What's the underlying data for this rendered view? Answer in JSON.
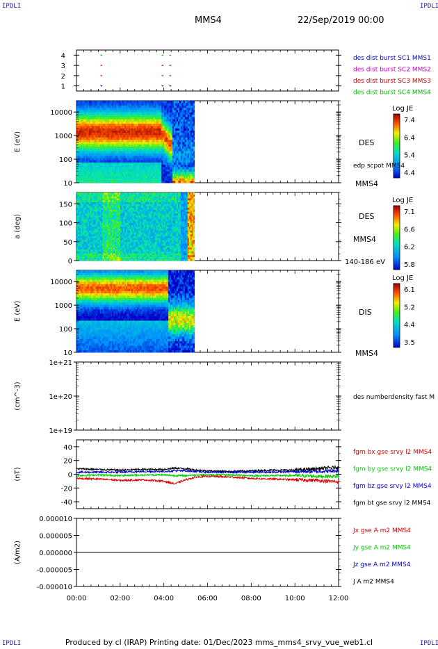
{
  "header": {
    "left_tag": "IPDLI",
    "right_tag": "IPDLI",
    "title": "MMS4",
    "datetime": "22/Sep/2019 00:00"
  },
  "footer": {
    "text": "Produced by cl (IRAP)   Printing date: 01/Dec/2023   mms_mms4_srvy_vue_web1.cl",
    "left_tag": "IPDLI",
    "right_tag": "IPDLI"
  },
  "chart_data": [
    {
      "type": "line",
      "name": "burst-availability",
      "y_ticks": [
        "1",
        "2",
        "3",
        "4"
      ],
      "ylim": [
        0.5,
        4.5
      ],
      "legend": [
        {
          "label": "des dist burst SC1 MMS1",
          "color": "#0000cc"
        },
        {
          "label": "des dist burst SC2 MMS2",
          "color": "#cc00cc"
        },
        {
          "label": "des dist burst SC3 MMS3",
          "color": "#cc0000"
        },
        {
          "label": "des dist burst SC4 MMS4",
          "color": "#00bb00"
        }
      ],
      "marks": [
        {
          "level": 4,
          "hours": [
            1.1,
            3.9,
            4.25
          ],
          "color": "#00bb00"
        },
        {
          "level": 3,
          "hours": [
            1.1,
            3.9,
            4.25
          ],
          "color": "#cc0000"
        },
        {
          "level": 2,
          "hours": [
            1.1,
            3.9,
            4.25
          ],
          "color": "#cc00cc"
        },
        {
          "level": 1,
          "hours": [
            1.1,
            3.9,
            4.25
          ],
          "color": "#0000cc"
        }
      ]
    },
    {
      "type": "heatmap",
      "name": "des-energy-spectrogram",
      "ylabel": "E (eV)",
      "y_scale": "log",
      "ylim": [
        10,
        30000
      ],
      "y_ticks": [
        "10",
        "100",
        "1000",
        "10000"
      ],
      "data_end_hour": 5.4,
      "right_label": "DES",
      "right_sub_label": "edp scpot MMS4",
      "right_bottom_label": "MMS4",
      "colorbar": {
        "title": "Log JE",
        "ticks": [
          "7.4",
          "6.4",
          "5.4",
          "4.4"
        ],
        "range": [
          4.4,
          7.4
        ]
      }
    },
    {
      "type": "heatmap",
      "name": "des-pitch-angle",
      "ylabel": "a (deg)",
      "ylim": [
        0,
        180
      ],
      "y_ticks": [
        "0",
        "50",
        "100",
        "150"
      ],
      "data_end_hour": 5.4,
      "right_label": "DES",
      "right_sub_label": "MMS4",
      "right_bottom_label": "140-186 eV",
      "colorbar": {
        "title": "Log JE",
        "ticks": [
          "7.1",
          "6.6",
          "6.2",
          "5.8"
        ],
        "range": [
          5.8,
          7.1
        ]
      }
    },
    {
      "type": "heatmap",
      "name": "dis-energy-spectrogram",
      "ylabel": "E (eV)",
      "y_scale": "log",
      "ylim": [
        10,
        30000
      ],
      "y_ticks": [
        "10",
        "100",
        "1000",
        "10000"
      ],
      "data_end_hour": 5.4,
      "right_label": "DIS",
      "right_bottom_label": "MMS4",
      "colorbar": {
        "title": "Log JE",
        "ticks": [
          "6.1",
          "5.2",
          "4.4",
          "3.5"
        ],
        "range": [
          3.5,
          6.1
        ]
      }
    },
    {
      "type": "line",
      "name": "density",
      "ylabel": "(cm^-3)",
      "y_scale": "log",
      "y_ticks": [
        "1e+19",
        "1e+20",
        "1e+21"
      ],
      "ylim": [
        1e+19,
        1e+21
      ],
      "legend": [
        {
          "label": "des numberdensity fast M",
          "color": "#000000"
        }
      ]
    },
    {
      "type": "line",
      "name": "magnetic-field",
      "ylabel": "(nT)",
      "ylim": [
        -50,
        50
      ],
      "y_ticks": [
        "-40",
        "-20",
        "0",
        "20",
        "40"
      ],
      "legend": [
        {
          "label": "fgm bx gse srvy l2 MMS4",
          "color": "#dd0000"
        },
        {
          "label": "fgm by gse srvy l2 MMS4",
          "color": "#00cc00"
        },
        {
          "label": "fgm bz gse srvy l2 MMS4",
          "color": "#0000cc"
        },
        {
          "label": "fgm bt gse srvy l2 MMS4",
          "color": "#000000"
        }
      ],
      "series": [
        {
          "name": "fgm bt gse srvy l2 MMS4",
          "color": "#000000",
          "x": [
            0,
            1,
            2,
            3,
            4,
            4.5,
            5,
            5.5,
            6,
            7,
            8,
            9,
            10,
            11,
            12
          ],
          "values": [
            8,
            7,
            6,
            7,
            7,
            9,
            8,
            6,
            5,
            4,
            5,
            6,
            6,
            8,
            10
          ]
        },
        {
          "name": "fgm bz gse srvy l2 MMS4",
          "color": "#0000cc",
          "x": [
            0,
            1,
            2,
            3,
            4,
            4.5,
            5,
            5.5,
            6,
            7,
            8,
            9,
            10,
            11,
            12
          ],
          "values": [
            3,
            3,
            3,
            4,
            4,
            5,
            5,
            4,
            3,
            3,
            3,
            3,
            4,
            4,
            5
          ]
        },
        {
          "name": "fgm by gse srvy l2 MMS4",
          "color": "#00cc00",
          "x": [
            0,
            1,
            2,
            3,
            4,
            4.5,
            5,
            5.5,
            6,
            7,
            8,
            9,
            10,
            11,
            12
          ],
          "values": [
            -2,
            -1,
            -2,
            -1,
            -1,
            -2,
            -2,
            -1,
            -1,
            -1,
            -2,
            -2,
            -2,
            -3,
            -3
          ]
        },
        {
          "name": "fgm bx gse srvy l2 MMS4",
          "color": "#dd0000",
          "x": [
            0,
            1,
            2,
            3,
            4,
            4.5,
            5,
            5.5,
            6,
            7,
            8,
            9,
            10,
            11,
            12
          ],
          "values": [
            -6,
            -7,
            -9,
            -8,
            -10,
            -14,
            -8,
            -4,
            -3,
            -4,
            -6,
            -7,
            -8,
            -9,
            -11
          ]
        }
      ]
    },
    {
      "type": "line",
      "name": "current-density",
      "ylabel": "(A/m2)",
      "ylim": [
        -1e-05,
        1e-05
      ],
      "y_ticks": [
        "-0.000010",
        "-0.000005",
        "0.000000",
        "0.000005",
        "0.000010"
      ],
      "legend": [
        {
          "label": "Jx gse A m2 MMS4",
          "color": "#dd0000"
        },
        {
          "label": "Jy gse A m2 MMS4",
          "color": "#00cc00"
        },
        {
          "label": "Jz gse A m2 MMS4",
          "color": "#0000cc"
        },
        {
          "label": "J A m2 MMS4",
          "color": "#000000"
        }
      ],
      "series": [
        {
          "name": "J A m2 MMS4",
          "color": "#000000",
          "x": [
            0,
            12
          ],
          "values": [
            0,
            0
          ]
        }
      ]
    }
  ],
  "time_axis": {
    "range_hours": [
      0,
      12
    ],
    "ticks": [
      "00:00",
      "02:00",
      "04:00",
      "06:00",
      "08:00",
      "10:00",
      "12:00"
    ]
  }
}
